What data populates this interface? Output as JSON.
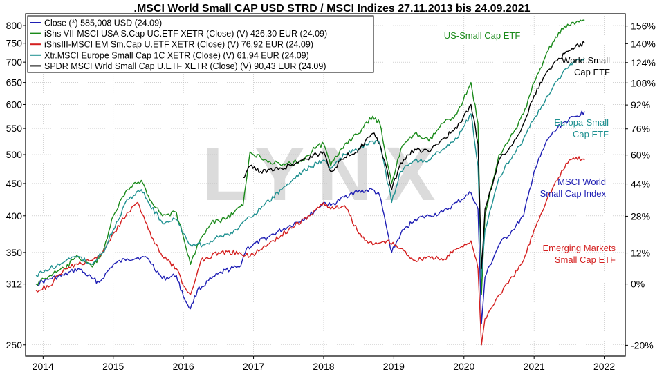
{
  "chart_data": {
    "type": "line",
    "title": ".MSCI World Small CAP USD STRD / MSCI Indizes 27.11.2013 bis 24.09.2021",
    "watermark": "LYNX",
    "x_ticks": [
      "2014",
      "2015",
      "2016",
      "2017",
      "2018",
      "2019",
      "2020",
      "2021",
      "2022"
    ],
    "xlim": [
      2013.75,
      2022.3
    ],
    "left_axis": {
      "scale": "log",
      "ticks": [
        "250",
        "312",
        "350",
        "400",
        "450",
        "500",
        "550",
        "600",
        "650",
        "700",
        "750",
        "800"
      ],
      "ylim": [
        240,
        835
      ]
    },
    "right_axis": {
      "ticks": [
        "-20%",
        "0%",
        "12%",
        "28%",
        "44%",
        "60%",
        "76%",
        "92%",
        "108%",
        "124%",
        "140%",
        "156%"
      ],
      "base_value": 312
    },
    "grid": true,
    "legend_position": "top-left",
    "legend": [
      {
        "label": "Close (*) 585,008 USD (24.09)",
        "color": "#1f1fb4"
      },
      {
        "label": "iShs VII-MSCI USA S.Cap UC.ETF XETR (Close) (V) 426,30 EUR (24.09)",
        "color": "#1a8a1a"
      },
      {
        "label": "iShsIII-MSCI EM Sm.Cap U.ETF XETR (Close) (V) 76,92 EUR (24.09)",
        "color": "#d42020"
      },
      {
        "label": "Xtr.MSCI Europe Small Cap 1C XETR (Close) (V) 61,94 EUR (24.09)",
        "color": "#1e9090"
      },
      {
        "label": "SPDR MSCI Wrld Small Cap U.ETF XETR (Close) (V) 90,43 EUR (24.09)",
        "color": "#000000"
      }
    ],
    "annotations": [
      {
        "lines": [
          "US-Small Cap ETF"
        ],
        "color": "#1a8a1a"
      },
      {
        "lines": [
          "World Small",
          "Cap ETF"
        ],
        "color": "#000000"
      },
      {
        "lines": [
          "Europa-Small",
          "Cap ETF"
        ],
        "color": "#1e9090"
      },
      {
        "lines": [
          "MSCI World",
          "Small Cap Index"
        ],
        "color": "#1f1fb4"
      },
      {
        "lines": [
          "Emerging Markets",
          "Small Cap ETF"
        ],
        "color": "#d42020"
      }
    ],
    "series": [
      {
        "name": "Close (*) 585,008 USD (24.09)",
        "color": "#1f1fb4",
        "x": [
          2013.9,
          2014.1,
          2014.3,
          2014.5,
          2014.7,
          2014.8,
          2015.0,
          2015.2,
          2015.4,
          2015.5,
          2015.7,
          2015.9,
          2016.0,
          2016.1,
          2016.2,
          2016.4,
          2016.6,
          2016.8,
          2016.9,
          2017.2,
          2017.5,
          2017.8,
          2018.0,
          2018.1,
          2018.4,
          2018.7,
          2018.8,
          2018.97,
          2019.1,
          2019.3,
          2019.5,
          2019.7,
          2019.9,
          2020.1,
          2020.2,
          2020.25,
          2020.3,
          2020.5,
          2020.7,
          2020.85,
          2021.0,
          2021.2,
          2021.4,
          2021.6,
          2021.72
        ],
        "y": [
          312,
          318,
          322,
          330,
          318,
          314,
          335,
          342,
          344,
          342,
          318,
          322,
          298,
          285,
          305,
          318,
          328,
          332,
          355,
          370,
          385,
          400,
          420,
          415,
          435,
          440,
          430,
          350,
          375,
          395,
          400,
          405,
          420,
          435,
          410,
          270,
          320,
          360,
          380,
          400,
          470,
          530,
          560,
          575,
          585
        ]
      },
      {
        "name": "iShs VII-MSCI USA S.Cap UC.ETF XETR (Close) (V) 426,30 EUR (24.09)",
        "color": "#1a8a1a",
        "x": [
          2013.9,
          2014.1,
          2014.3,
          2014.5,
          2014.7,
          2014.85,
          2015.0,
          2015.2,
          2015.4,
          2015.5,
          2015.7,
          2015.9,
          2016.0,
          2016.1,
          2016.2,
          2016.4,
          2016.6,
          2016.85,
          2016.95,
          2017.1,
          2017.4,
          2017.7,
          2017.9,
          2018.0,
          2018.1,
          2018.3,
          2018.5,
          2018.7,
          2018.8,
          2018.97,
          2019.1,
          2019.3,
          2019.5,
          2019.7,
          2019.9,
          2020.1,
          2020.2,
          2020.25,
          2020.3,
          2020.5,
          2020.7,
          2020.85,
          2021.0,
          2021.2,
          2021.35,
          2021.5,
          2021.6,
          2021.72
        ],
        "y": [
          312,
          322,
          330,
          345,
          332,
          350,
          400,
          440,
          455,
          430,
          400,
          405,
          370,
          335,
          360,
          390,
          395,
          415,
          505,
          495,
          480,
          490,
          515,
          520,
          480,
          520,
          540,
          575,
          560,
          450,
          510,
          540,
          525,
          560,
          580,
          650,
          560,
          300,
          400,
          500,
          540,
          580,
          650,
          730,
          780,
          800,
          810,
          815
        ]
      },
      {
        "name": "iShsIII-MSCI EM Sm.Cap U.ETF XETR (Close) (V) 76,92 EUR (24.09)",
        "color": "#d42020",
        "x": [
          2013.9,
          2014.1,
          2014.3,
          2014.5,
          2014.7,
          2014.85,
          2015.0,
          2015.2,
          2015.35,
          2015.5,
          2015.7,
          2015.9,
          2016.0,
          2016.1,
          2016.25,
          2016.5,
          2016.8,
          2016.95,
          2017.2,
          2017.5,
          2017.8,
          2018.0,
          2018.1,
          2018.3,
          2018.5,
          2018.7,
          2018.9,
          2019.1,
          2019.3,
          2019.5,
          2019.7,
          2019.9,
          2020.1,
          2020.2,
          2020.25,
          2020.3,
          2020.5,
          2020.7,
          2020.85,
          2021.0,
          2021.2,
          2021.35,
          2021.5,
          2021.6,
          2021.72
        ],
        "y": [
          305,
          310,
          330,
          335,
          340,
          350,
          375,
          405,
          420,
          380,
          345,
          330,
          310,
          300,
          340,
          350,
          350,
          345,
          360,
          380,
          400,
          420,
          410,
          415,
          375,
          360,
          365,
          355,
          340,
          345,
          340,
          355,
          365,
          330,
          250,
          275,
          300,
          320,
          340,
          380,
          430,
          460,
          490,
          495,
          490
        ]
      },
      {
        "name": "Xtr.MSCI Europe Small Cap 1C XETR (Close) (V) 61,94 EUR (24.09)",
        "color": "#1e9090",
        "x": [
          2013.9,
          2014.1,
          2014.3,
          2014.5,
          2014.7,
          2014.85,
          2015.0,
          2015.2,
          2015.4,
          2015.5,
          2015.7,
          2015.9,
          2016.0,
          2016.1,
          2016.3,
          2016.5,
          2016.7,
          2016.9,
          2017.1,
          2017.4,
          2017.7,
          2017.9,
          2018.0,
          2018.1,
          2018.3,
          2018.5,
          2018.7,
          2018.8,
          2018.97,
          2019.1,
          2019.3,
          2019.5,
          2019.7,
          2019.9,
          2020.1,
          2020.2,
          2020.25,
          2020.3,
          2020.5,
          2020.7,
          2020.85,
          2021.0,
          2021.2,
          2021.35,
          2021.5,
          2021.6,
          2021.72
        ],
        "y": [
          322,
          330,
          338,
          345,
          335,
          350,
          380,
          425,
          440,
          420,
          390,
          395,
          375,
          360,
          360,
          370,
          375,
          395,
          410,
          440,
          470,
          485,
          490,
          475,
          500,
          510,
          525,
          520,
          420,
          470,
          490,
          490,
          510,
          530,
          580,
          480,
          320,
          380,
          460,
          500,
          530,
          570,
          620,
          660,
          690,
          705,
          710
        ]
      },
      {
        "name": "SPDR MSCI Wrld Small Cap U.ETF XETR (Close) (V) 90,43 EUR (24.09)",
        "color": "#000000",
        "x": [
          2016.85,
          2016.95,
          2017.1,
          2017.4,
          2017.7,
          2017.9,
          2018.0,
          2018.1,
          2018.3,
          2018.5,
          2018.7,
          2018.8,
          2018.97,
          2019.1,
          2019.3,
          2019.5,
          2019.7,
          2019.9,
          2020.1,
          2020.2,
          2020.25,
          2020.3,
          2020.5,
          2020.7,
          2020.85,
          2021.0,
          2021.2,
          2021.35,
          2021.5,
          2021.6,
          2021.72
        ],
        "y": [
          460,
          480,
          470,
          475,
          490,
          500,
          505,
          470,
          495,
          510,
          540,
          520,
          440,
          485,
          510,
          505,
          530,
          550,
          600,
          520,
          330,
          410,
          490,
          520,
          560,
          620,
          680,
          710,
          730,
          745,
          750
        ]
      }
    ]
  }
}
